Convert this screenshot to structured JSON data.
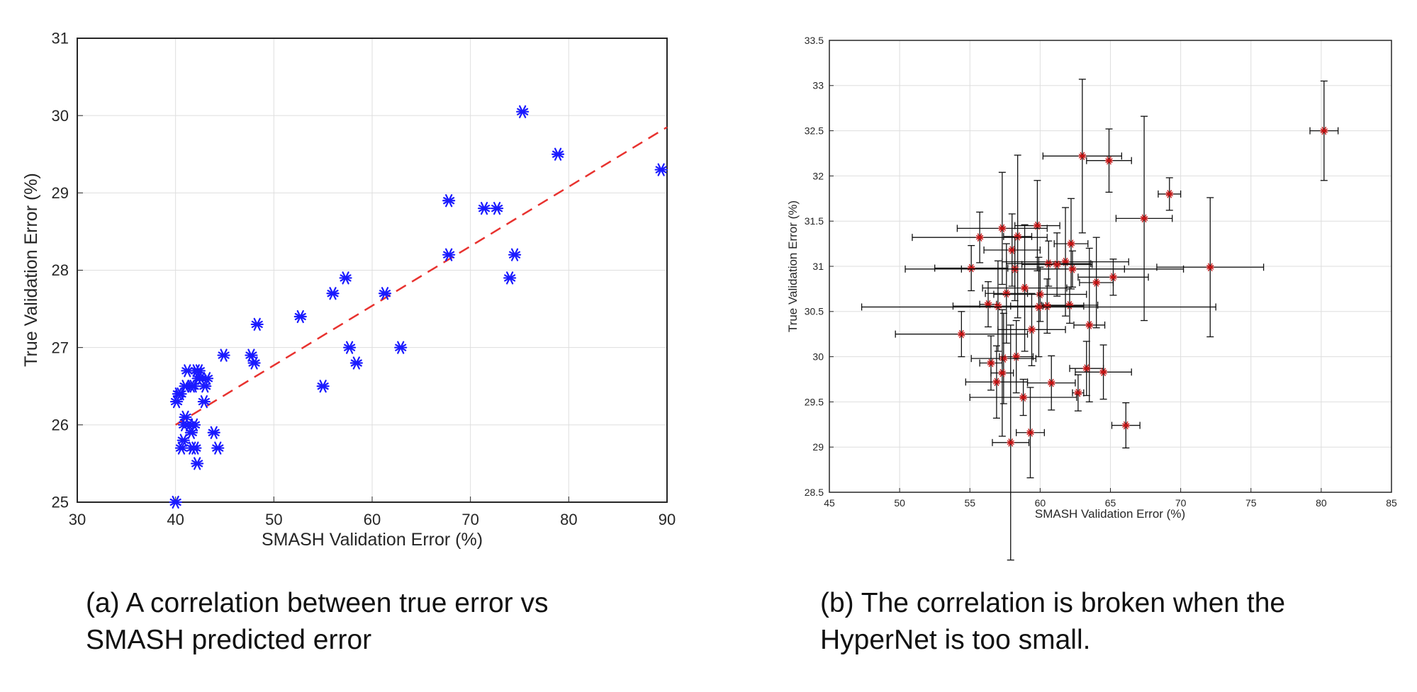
{
  "chart_data": [
    {
      "type": "scatter",
      "title": "",
      "xlabel": "SMASH Validation Error (%)",
      "ylabel": "True Validation Error (%)",
      "xlim": [
        30,
        90
      ],
      "ylim": [
        25,
        31
      ],
      "xticks": [
        30,
        40,
        50,
        60,
        70,
        80,
        90
      ],
      "yticks": [
        25,
        26,
        27,
        28,
        29,
        30,
        31
      ],
      "grid": true,
      "marker": "asterisk",
      "colors": {
        "points": "#1a1aff",
        "fit": "#e8322f"
      },
      "fit_line": {
        "style": "dashed",
        "x": [
          40,
          90
        ],
        "y": [
          26.0,
          29.85
        ]
      },
      "series": [
        {
          "x": [
            40.0,
            40.1,
            40.3,
            40.5,
            40.6,
            40.8,
            40.9,
            41.0,
            41.0,
            41.2,
            41.4,
            41.6,
            41.6,
            41.7,
            41.8,
            41.9,
            42.0,
            42.1,
            42.2,
            42.3,
            42.4,
            42.6,
            42.9,
            43.0,
            43.2,
            43.9,
            44.3,
            44.9,
            47.7,
            48.0,
            48.3,
            52.7,
            55.0,
            56.0,
            57.3,
            57.7,
            58.4,
            61.3,
            62.9,
            67.8,
            67.8,
            71.4,
            72.7,
            74.0,
            74.5,
            75.3,
            78.9,
            89.4
          ],
          "y": [
            25.0,
            26.3,
            26.4,
            26.4,
            25.7,
            25.8,
            26.0,
            26.5,
            26.1,
            26.7,
            26.0,
            26.5,
            25.9,
            25.7,
            26.5,
            26.0,
            25.7,
            26.7,
            25.5,
            26.6,
            26.7,
            26.6,
            26.3,
            26.5,
            26.6,
            25.9,
            25.7,
            26.9,
            26.9,
            26.8,
            27.3,
            27.4,
            26.5,
            27.7,
            27.9,
            27.0,
            26.8,
            27.7,
            27.0,
            28.2,
            28.9,
            28.8,
            28.8,
            27.9,
            28.2,
            30.05,
            29.5,
            29.3
          ]
        }
      ]
    },
    {
      "type": "scatter",
      "title": "",
      "xlabel": "SMASH Validation Error (%)",
      "ylabel": "True Validation Error (%)",
      "xlim": [
        45,
        85
      ],
      "ylim": [
        28.5,
        33.5
      ],
      "xticks": [
        45,
        50,
        55,
        60,
        65,
        70,
        75,
        80,
        85
      ],
      "yticks": [
        28.5,
        29,
        29.5,
        30,
        30.5,
        31,
        31.5,
        32,
        32.5,
        33,
        33.5
      ],
      "grid": true,
      "marker": "asterisk",
      "error_bars": true,
      "colors": {
        "points": "#c41414",
        "errorbars": "#111111"
      },
      "series": [
        {
          "points": [
            {
              "x": 80.2,
              "y": 32.5,
              "xerr": 1.0,
              "yerr": 0.55
            },
            {
              "x": 63.0,
              "y": 32.22,
              "xerr": 2.8,
              "yerr": 0.85
            },
            {
              "x": 64.9,
              "y": 32.17,
              "xerr": 1.6,
              "yerr": 0.35
            },
            {
              "x": 69.2,
              "y": 31.8,
              "xerr": 0.8,
              "yerr": 0.18
            },
            {
              "x": 67.4,
              "y": 31.53,
              "xerr": 2.0,
              "yerr": 1.13
            },
            {
              "x": 59.8,
              "y": 31.45,
              "xerr": 1.6,
              "yerr": 0.5
            },
            {
              "x": 57.3,
              "y": 31.42,
              "xerr": 3.2,
              "yerr": 0.62
            },
            {
              "x": 55.7,
              "y": 31.32,
              "xerr": 4.8,
              "yerr": 0.28
            },
            {
              "x": 58.4,
              "y": 31.33,
              "xerr": 1.0,
              "yerr": 0.9
            },
            {
              "x": 62.2,
              "y": 31.25,
              "xerr": 1.2,
              "yerr": 0.5
            },
            {
              "x": 58.0,
              "y": 31.18,
              "xerr": 2.0,
              "yerr": 0.4
            },
            {
              "x": 61.8,
              "y": 31.05,
              "xerr": 4.5,
              "yerr": 0.6
            },
            {
              "x": 60.6,
              "y": 31.03,
              "xerr": 3.0,
              "yerr": 0.25
            },
            {
              "x": 61.2,
              "y": 31.02,
              "xerr": 2.5,
              "yerr": 0.35
            },
            {
              "x": 72.1,
              "y": 30.99,
              "xerr": 3.8,
              "yerr": 0.77
            },
            {
              "x": 55.1,
              "y": 30.98,
              "xerr": 2.6,
              "yerr": 0.25
            },
            {
              "x": 58.2,
              "y": 30.97,
              "xerr": 7.8,
              "yerr": 0.35
            },
            {
              "x": 62.3,
              "y": 30.97,
              "xerr": 7.9,
              "yerr": 0.2
            },
            {
              "x": 65.2,
              "y": 30.88,
              "xerr": 2.5,
              "yerr": 0.2
            },
            {
              "x": 64.0,
              "y": 30.82,
              "xerr": 1.2,
              "yerr": 0.5
            },
            {
              "x": 58.9,
              "y": 30.76,
              "xerr": 3.0,
              "yerr": 0.7
            },
            {
              "x": 57.6,
              "y": 30.7,
              "xerr": 1.5,
              "yerr": 0.55
            },
            {
              "x": 60.0,
              "y": 30.69,
              "xerr": 3.3,
              "yerr": 0.3
            },
            {
              "x": 56.3,
              "y": 30.58,
              "xerr": 0.6,
              "yerr": 0.25
            },
            {
              "x": 62.1,
              "y": 30.57,
              "xerr": 2.0,
              "yerr": 0.2
            },
            {
              "x": 57.0,
              "y": 30.56,
              "xerr": 3.2,
              "yerr": 0.5
            },
            {
              "x": 60.5,
              "y": 30.56,
              "xerr": 2.6,
              "yerr": 0.3
            },
            {
              "x": 59.9,
              "y": 30.55,
              "xerr": 12.6,
              "yerr": 0.55
            },
            {
              "x": 63.5,
              "y": 30.35,
              "xerr": 1.1,
              "yerr": 0.85
            },
            {
              "x": 59.4,
              "y": 30.3,
              "xerr": 2.4,
              "yerr": 0.4
            },
            {
              "x": 54.4,
              "y": 30.25,
              "xerr": 4.7,
              "yerr": 0.25
            },
            {
              "x": 58.3,
              "y": 30.0,
              "xerr": 1.2,
              "yerr": 0.4
            },
            {
              "x": 57.4,
              "y": 29.98,
              "xerr": 2.3,
              "yerr": 0.5
            },
            {
              "x": 56.5,
              "y": 29.93,
              "xerr": 0.8,
              "yerr": 0.3
            },
            {
              "x": 63.3,
              "y": 29.87,
              "xerr": 1.2,
              "yerr": 0.3
            },
            {
              "x": 64.5,
              "y": 29.83,
              "xerr": 2.0,
              "yerr": 0.3
            },
            {
              "x": 57.3,
              "y": 29.82,
              "xerr": 0.8,
              "yerr": 0.7
            },
            {
              "x": 56.9,
              "y": 29.72,
              "xerr": 2.2,
              "yerr": 0.4
            },
            {
              "x": 60.8,
              "y": 29.71,
              "xerr": 1.7,
              "yerr": 0.3
            },
            {
              "x": 62.7,
              "y": 29.6,
              "xerr": 0.4,
              "yerr": 0.2
            },
            {
              "x": 58.8,
              "y": 29.55,
              "xerr": 3.8,
              "yerr": 0.2
            },
            {
              "x": 66.1,
              "y": 29.24,
              "xerr": 1.0,
              "yerr": 0.25
            },
            {
              "x": 59.3,
              "y": 29.16,
              "xerr": 1.0,
              "yerr": 0.5
            },
            {
              "x": 57.9,
              "y": 29.05,
              "xerr": 1.3,
              "yerr": 1.3
            }
          ]
        }
      ]
    }
  ],
  "captions": {
    "a": [
      "(a) A correlation between true error vs",
      "SMASH predicted error"
    ],
    "b": [
      "(b) The correlation is broken when the",
      "HyperNet is too small."
    ]
  }
}
